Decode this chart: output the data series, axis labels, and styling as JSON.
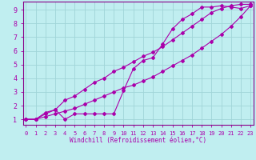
{
  "background_color": "#c0eef0",
  "grid_color": "#a0d4d8",
  "line_color": "#aa00aa",
  "spine_color": "#880088",
  "xlim": [
    -0.3,
    23.3
  ],
  "ylim": [
    0.6,
    9.6
  ],
  "xticks": [
    0,
    1,
    2,
    3,
    4,
    5,
    6,
    7,
    8,
    9,
    10,
    11,
    12,
    13,
    14,
    15,
    16,
    17,
    18,
    19,
    20,
    21,
    22,
    23
  ],
  "yticks": [
    1,
    2,
    3,
    4,
    5,
    6,
    7,
    8,
    9
  ],
  "xlabel": "Windchill (Refroidissement éolien,°C)",
  "line1_x": [
    0,
    1,
    2,
    3,
    4,
    5,
    6,
    7,
    8,
    9,
    10,
    11,
    12,
    13,
    14,
    15,
    16,
    17,
    18,
    19,
    20,
    21,
    22,
    23
  ],
  "line1_y": [
    1.0,
    1.0,
    1.5,
    1.7,
    1.0,
    1.4,
    1.4,
    1.4,
    1.4,
    1.4,
    3.1,
    4.7,
    5.3,
    5.5,
    6.5,
    7.6,
    8.3,
    8.7,
    9.2,
    9.2,
    9.3,
    9.2,
    9.1,
    9.3
  ],
  "line2_x": [
    0,
    1,
    2,
    3,
    4,
    5,
    6,
    7,
    8,
    9,
    10,
    11,
    12,
    13,
    14,
    15,
    16,
    17,
    18,
    19,
    20,
    21,
    22,
    23
  ],
  "line2_y": [
    1.0,
    1.0,
    1.4,
    1.7,
    2.4,
    2.7,
    3.2,
    3.7,
    4.0,
    4.5,
    4.8,
    5.2,
    5.6,
    5.9,
    6.3,
    6.8,
    7.3,
    7.8,
    8.3,
    8.8,
    9.1,
    9.3,
    9.4,
    9.4
  ],
  "line3_x": [
    0,
    1,
    2,
    3,
    4,
    5,
    6,
    7,
    8,
    9,
    10,
    11,
    12,
    13,
    14,
    15,
    16,
    17,
    18,
    19,
    20,
    21,
    22,
    23
  ],
  "line3_y": [
    1.0,
    1.0,
    1.2,
    1.4,
    1.6,
    1.8,
    2.1,
    2.4,
    2.7,
    3.0,
    3.3,
    3.5,
    3.8,
    4.1,
    4.5,
    4.9,
    5.3,
    5.7,
    6.2,
    6.7,
    7.2,
    7.8,
    8.5,
    9.3
  ],
  "tick_fontsize": 5,
  "xlabel_fontsize": 5.5,
  "linewidth": 0.8,
  "markersize": 2.0
}
